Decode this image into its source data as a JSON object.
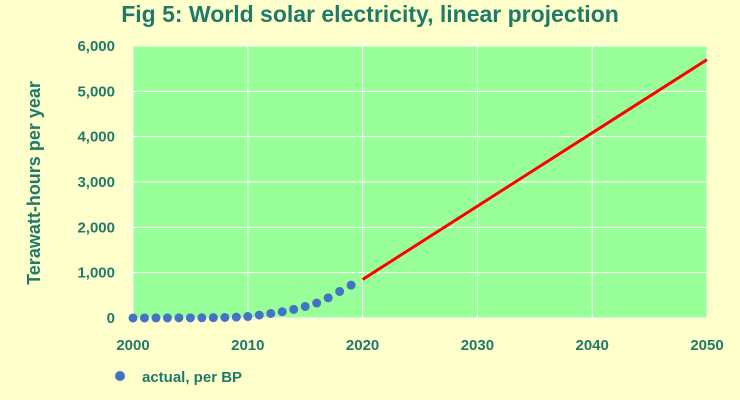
{
  "colors": {
    "background": "#FFFFCC",
    "plot_area": "#99FF99",
    "gridline": "#FFFFFF",
    "text": "#1F7A6B",
    "actual_points": "#4472C4",
    "projection_line": "#FF0000"
  },
  "chart_data": {
    "type": "scatter",
    "title": "Fig 5: World solar electricity, linear projection",
    "xlabel": "",
    "ylabel": "Terawatt-hours per year",
    "xlim": [
      2000,
      2050
    ],
    "ylim": [
      0,
      6000
    ],
    "x_ticks": [
      2000,
      2010,
      2020,
      2030,
      2040,
      2050
    ],
    "y_ticks": [
      0,
      1000,
      2000,
      3000,
      4000,
      5000,
      6000
    ],
    "y_tick_labels": [
      "0",
      "1,000",
      "2,000",
      "3,000",
      "4,000",
      "5,000",
      "6,000"
    ],
    "x_tick_labels": [
      "2000",
      "2010",
      "2020",
      "2030",
      "2040",
      "2050"
    ],
    "grid": "horizontal",
    "legend_placement": "bottom-left",
    "series": [
      {
        "name": "actual, per BP",
        "type": "scatter",
        "x": [
          2000,
          2001,
          2002,
          2003,
          2004,
          2005,
          2006,
          2007,
          2008,
          2009,
          2010,
          2011,
          2012,
          2013,
          2014,
          2015,
          2016,
          2017,
          2018,
          2019
        ],
        "y": [
          1,
          1,
          2,
          2,
          3,
          4,
          5,
          7,
          12,
          20,
          32,
          64,
          100,
          138,
          190,
          255,
          330,
          445,
          585,
          725
        ]
      },
      {
        "type": "line",
        "x": [
          2020,
          2050
        ],
        "y": [
          850,
          5700
        ]
      }
    ]
  }
}
